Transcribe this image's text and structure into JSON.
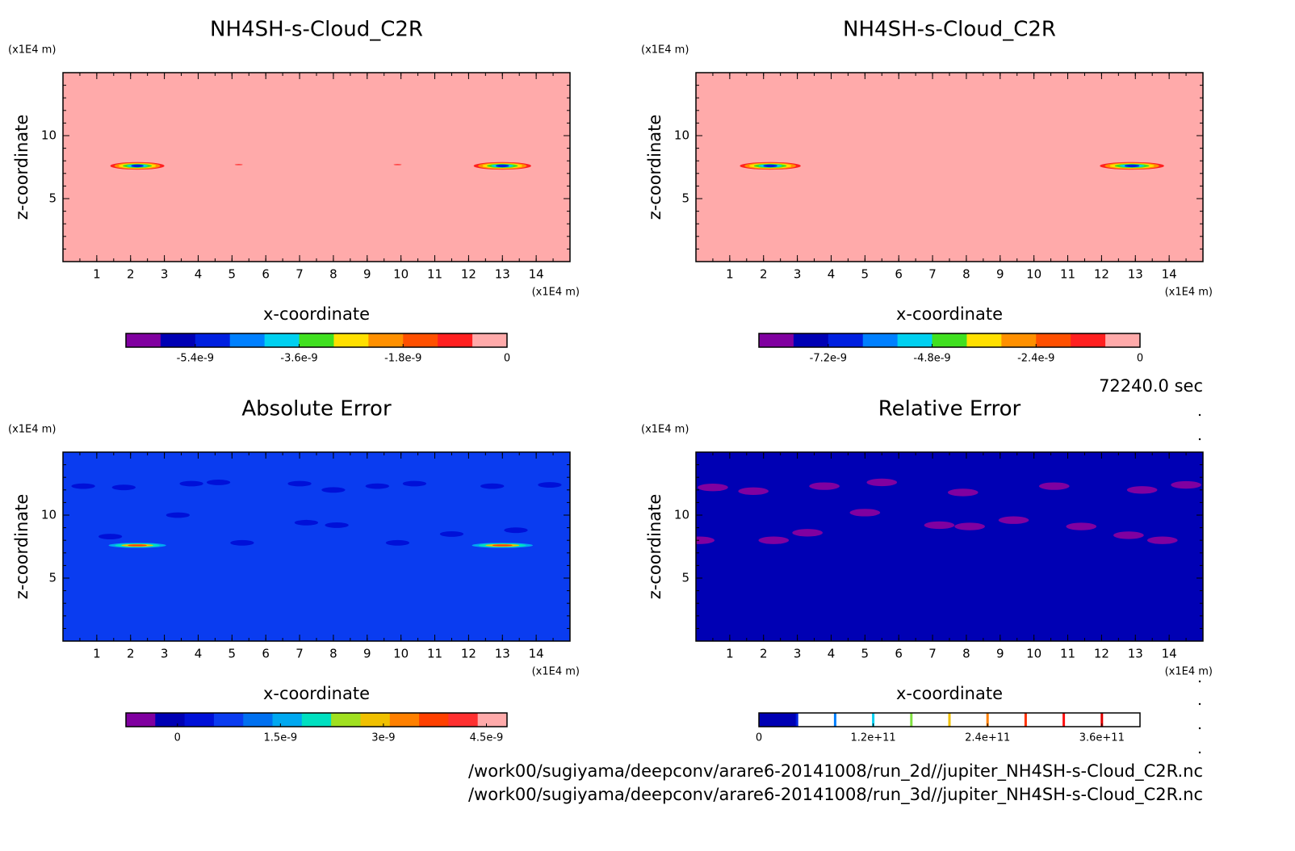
{
  "chart_data": [
    {
      "type": "contour",
      "title": "NH4SH-s-Cloud_C2R",
      "xlabel": "x-coordinate",
      "ylabel": "z-coordinate",
      "x_unit": "(x1E4 m)",
      "y_unit": "(x1E4 m)",
      "xlim": [
        0,
        15
      ],
      "ylim": [
        0,
        15
      ],
      "xticks": [
        1,
        2,
        3,
        4,
        5,
        6,
        7,
        8,
        9,
        10,
        11,
        12,
        13,
        14
      ],
      "yticks": [
        5,
        10
      ],
      "background": "#ffaaaa",
      "colorbar": {
        "colors": [
          "#8000a0",
          "#0000b4",
          "#0020e0",
          "#0080ff",
          "#00d0f0",
          "#40e020",
          "#ffe000",
          "#ff9000",
          "#ff5000",
          "#ff2020",
          "#ffaaaa"
        ],
        "lim": [
          -6.6e-09,
          0
        ],
        "ticks": [
          -5.4e-09,
          -3.6e-09,
          -1.8e-09,
          0
        ]
      }
    },
    {
      "type": "contour",
      "title": "NH4SH-s-Cloud_C2R",
      "xlabel": "x-coordinate",
      "ylabel": "z-coordinate",
      "x_unit": "(x1E4 m)",
      "y_unit": "(x1E4 m)",
      "xlim": [
        0,
        15
      ],
      "ylim": [
        0,
        15
      ],
      "xticks": [
        1,
        2,
        3,
        4,
        5,
        6,
        7,
        8,
        9,
        10,
        11,
        12,
        13,
        14
      ],
      "yticks": [
        5,
        10
      ],
      "background": "#ffaaaa",
      "colorbar": {
        "colors": [
          "#8000a0",
          "#0000b4",
          "#0020e0",
          "#0080ff",
          "#00d0f0",
          "#40e020",
          "#ffe000",
          "#ff9000",
          "#ff5000",
          "#ff2020",
          "#ffaaaa"
        ],
        "lim": [
          -8.8e-09,
          0
        ],
        "ticks": [
          -7.2e-09,
          -4.8e-09,
          -2.4e-09,
          0
        ]
      }
    },
    {
      "type": "contour",
      "title": "Absolute Error",
      "xlabel": "x-coordinate",
      "ylabel": "z-coordinate",
      "x_unit": "(x1E4 m)",
      "y_unit": "(x1E4 m)",
      "xlim": [
        0,
        15
      ],
      "ylim": [
        0,
        15
      ],
      "xticks": [
        1,
        2,
        3,
        4,
        5,
        6,
        7,
        8,
        9,
        10,
        11,
        12,
        13,
        14
      ],
      "yticks": [
        5,
        10
      ],
      "background": "#0a3cf0",
      "colorbar": {
        "colors": [
          "#8000a0",
          "#0000b4",
          "#0010d8",
          "#0a3cf0",
          "#0070f0",
          "#00a8f0",
          "#00e0c0",
          "#a0e020",
          "#f0c000",
          "#ff8000",
          "#ff4000",
          "#ff3030",
          "#ffaaaa"
        ],
        "lim": [
          -7.5e-10,
          4.8e-09
        ],
        "ticks": [
          0,
          1.5e-09,
          3e-09,
          4.5e-09
        ]
      }
    },
    {
      "type": "contour",
      "title": "Relative Error",
      "xlabel": "x-coordinate",
      "ylabel": "z-coordinate",
      "x_unit": "(x1E4 m)",
      "y_unit": "(x1E4 m)",
      "xlim": [
        0,
        15
      ],
      "ylim": [
        0,
        15
      ],
      "xticks": [
        1,
        2,
        3,
        4,
        5,
        6,
        7,
        8,
        9,
        10,
        11,
        12,
        13,
        14
      ],
      "yticks": [
        5,
        10
      ],
      "background": "#0000b4",
      "colorbar": {
        "style": "lines",
        "colors": [
          "#0000b4",
          "#0020e0",
          "#0080ff",
          "#00d0f0",
          "#80e040",
          "#f0c000",
          "#ff8000",
          "#ff3000",
          "#ff1010",
          "#e00000"
        ],
        "lim": [
          0,
          400000000000.0
        ],
        "ticks": [
          0,
          {
            "value": 120000000000.0,
            "label": "1.2e+11"
          },
          {
            "value": 240000000000.0,
            "label": "2.4e+11"
          },
          {
            "value": 360000000000.0,
            "label": "3.6e+11"
          }
        ]
      }
    }
  ],
  "time": "72240.0 sec",
  "files": [
    "/work00/sugiyama/deepconv/arare6-20141008/run_2d//jupiter_NH4SH-s-Cloud_C2R.nc",
    "/work00/sugiyama/deepconv/arare6-20141008/run_3d//jupiter_NH4SH-s-Cloud_C2R.nc"
  ]
}
